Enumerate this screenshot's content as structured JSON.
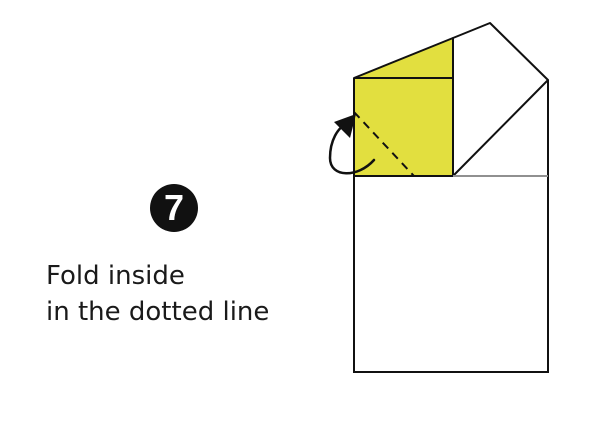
{
  "step": {
    "number": "7"
  },
  "instruction": {
    "line1": "Fold inside",
    "line2": "in the dotted line"
  },
  "colors": {
    "flap_fill": "#e2df3f",
    "stroke": "#111111",
    "crease_line": "#bbbbbb",
    "background": "#ffffff"
  },
  "icons": {
    "fold_arrow": "curved-arrow-icon"
  }
}
